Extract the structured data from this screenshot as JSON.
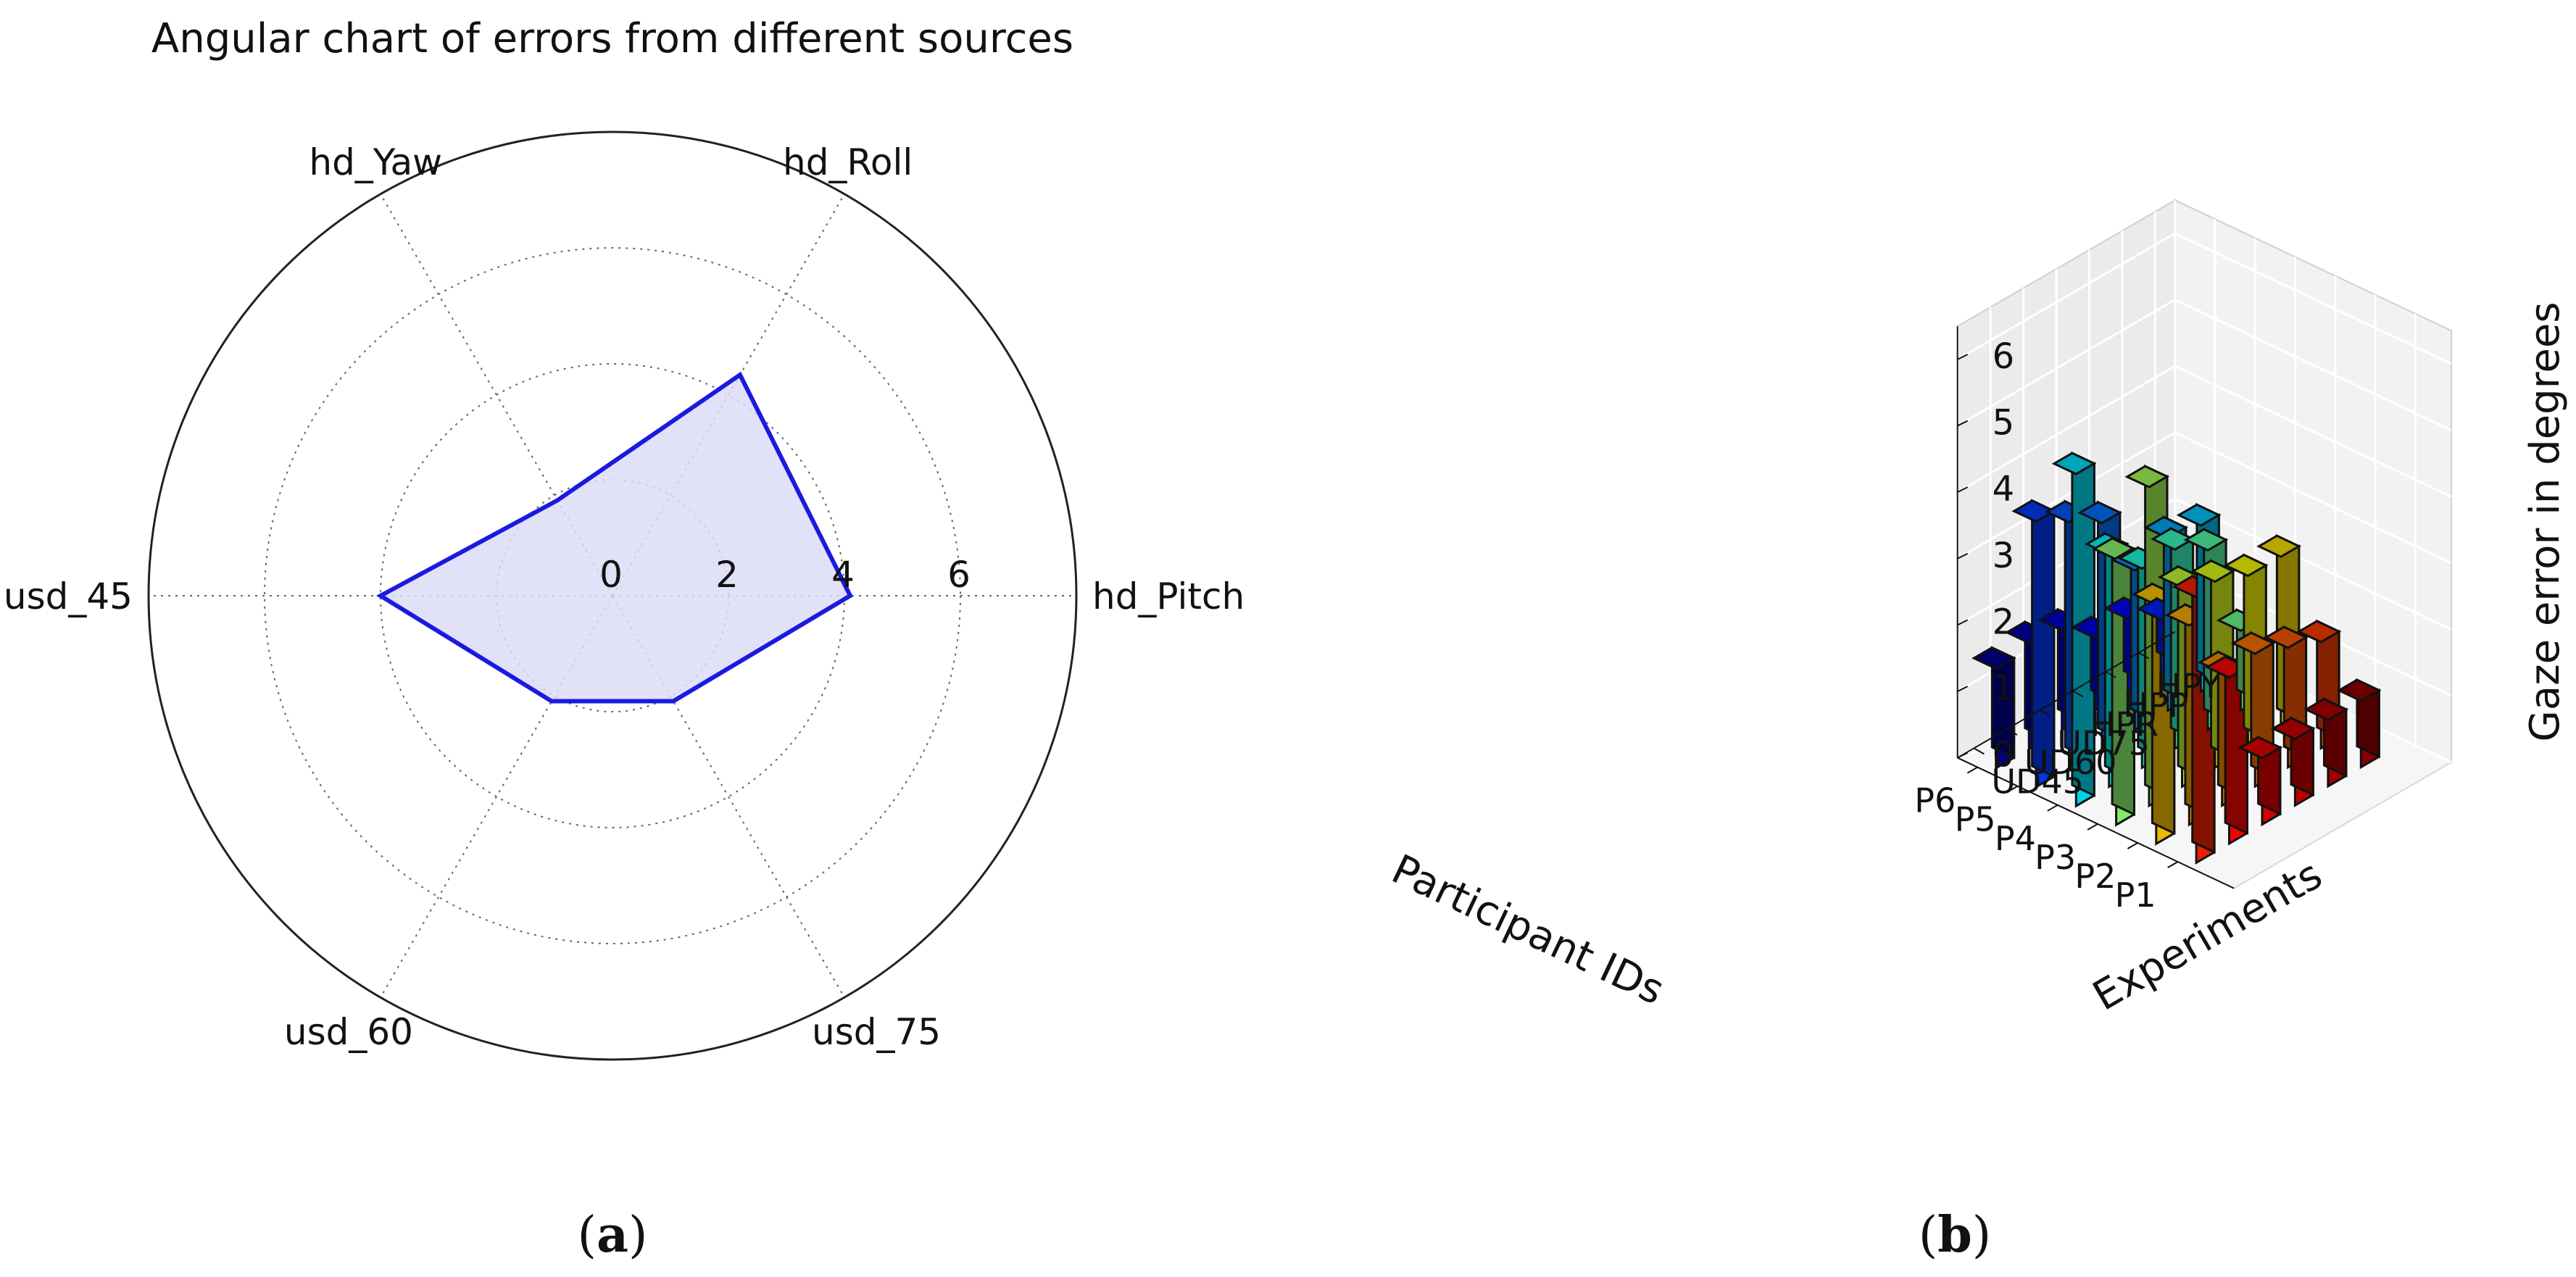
{
  "figure": {
    "panel_a": {
      "label_open": "(",
      "label_letter": "a",
      "label_close": ")"
    },
    "panel_b": {
      "label_open": "(",
      "label_letter": "b",
      "label_close": ")"
    }
  },
  "chart_data": [
    {
      "type": "radar",
      "title": "Angular chart of errors from different sources",
      "axes": [
        "hd_Pitch",
        "hd_Roll",
        "hd_Yaw",
        "usd_45",
        "usd_60",
        "usd_75"
      ],
      "axis_angles_deg": [
        0,
        60,
        120,
        180,
        240,
        300
      ],
      "values": [
        4.1,
        4.4,
        1.9,
        4.0,
        2.1,
        2.1
      ],
      "rmax": 8,
      "ring_values": [
        2,
        4,
        6,
        8
      ],
      "radial_tick_labels": [
        "0",
        "2",
        "4",
        "6"
      ],
      "line_color": "#1a1adf",
      "fill_color": "#dcdcf6",
      "grid": true
    },
    {
      "type": "bar3d",
      "xlabel": "Participant IDs",
      "ylabel": "Experiments",
      "zlabel": "Gaze error in degrees",
      "participants": [
        "P1",
        "P2",
        "P3",
        "P4",
        "P5",
        "P6"
      ],
      "experiments": [
        "HPY",
        "HPP",
        "HPR",
        "UD75",
        "UD60",
        "UD45"
      ],
      "zlim": [
        0,
        6
      ],
      "z_ticks": [
        "0",
        "1",
        "2",
        "3",
        "4",
        "5",
        "6"
      ],
      "values": [
        [
          1.0,
          1.0,
          1.0,
          1.0,
          2.5,
          4.0
        ],
        [
          1.6,
          1.8,
          2.0,
          2.0,
          3.0,
          3.6
        ],
        [
          2.6,
          2.6,
          2.8,
          3.0,
          4.8,
          4.0
        ],
        [
          1.2,
          2.7,
          3.0,
          3.0,
          3.5,
          5.0
        ],
        [
          2.5,
          2.6,
          2.4,
          3.4,
          3.7,
          4.0
        ],
        [
          0.8,
          1.1,
          1.1,
          1.5,
          1.6,
          1.5
        ]
      ],
      "colormap": "jet",
      "grid": true
    }
  ]
}
